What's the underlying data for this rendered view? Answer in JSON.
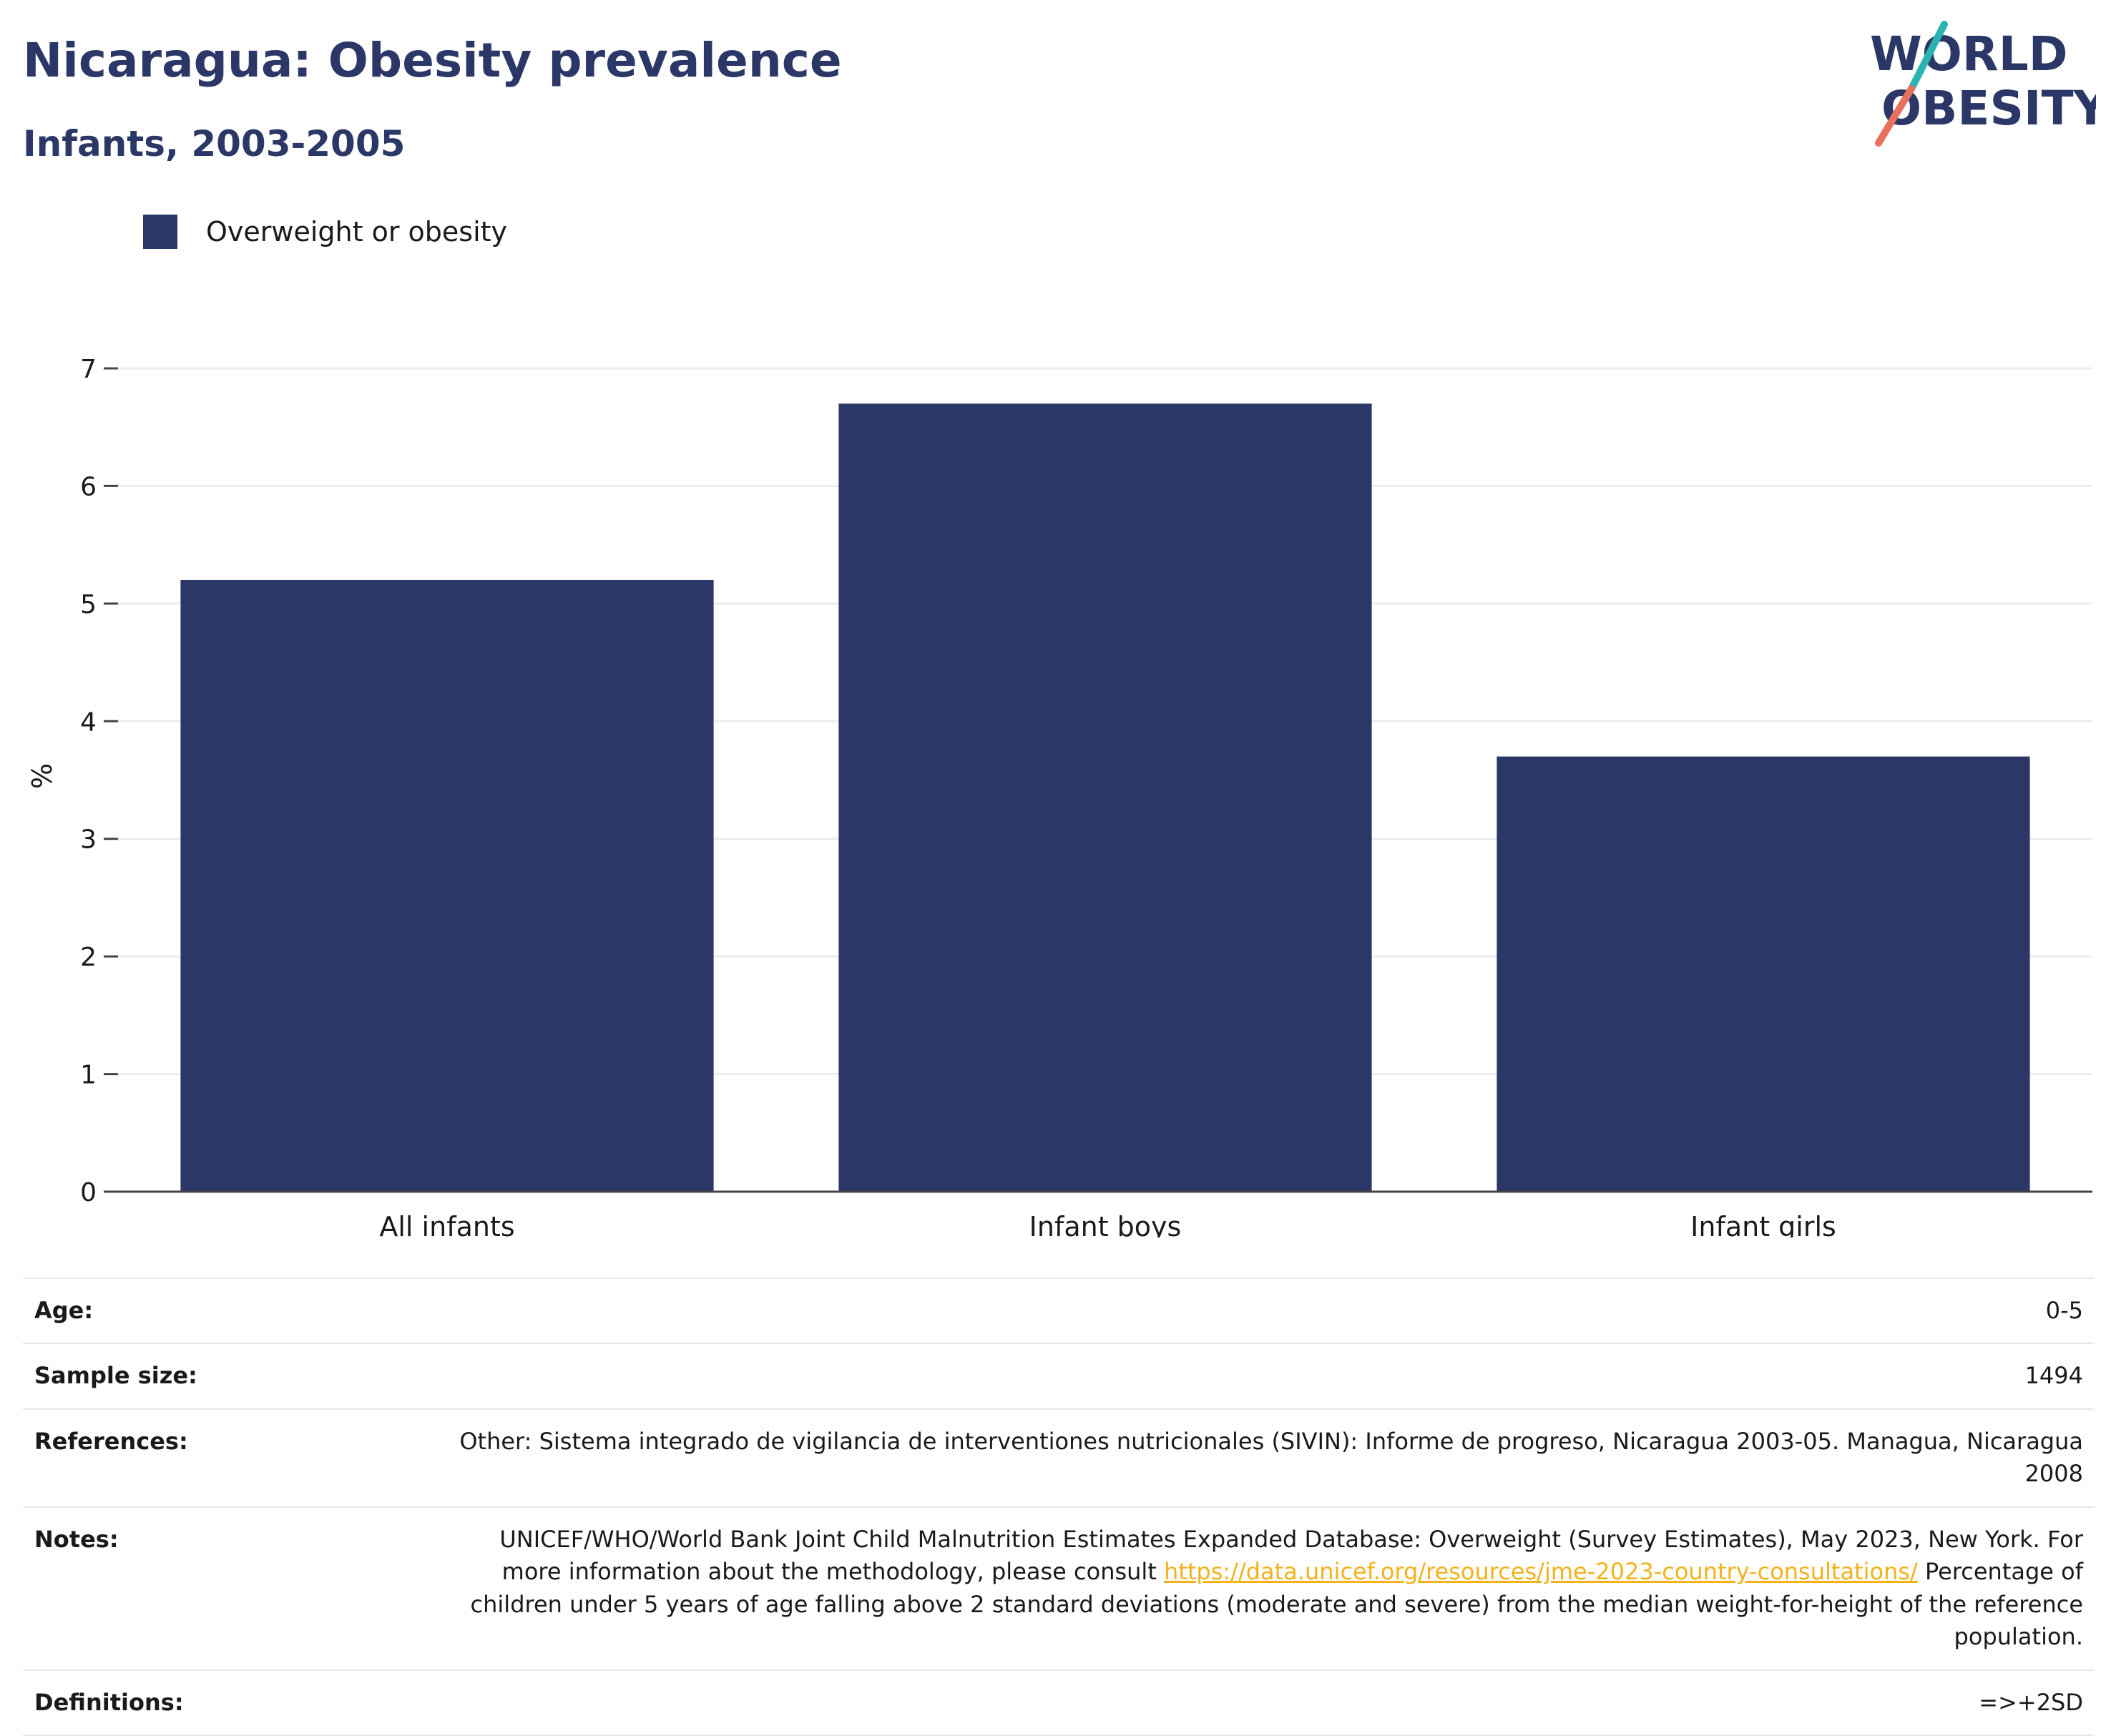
{
  "header": {
    "title": "Nicaragua: Obesity prevalence",
    "subtitle": "Infants, 2003-2005"
  },
  "logo": {
    "line1": "WORLD",
    "line2": "OBESITY",
    "colors": {
      "text": "#2b3766",
      "slash_top": "#2bb3b1",
      "slash_bottom": "#e8705f"
    }
  },
  "legend": {
    "items": [
      {
        "label": "Overweight or obesity",
        "color": "#2b3766"
      }
    ]
  },
  "chart_data": {
    "type": "bar",
    "categories": [
      "All infants",
      "Infant boys",
      "Infant girls"
    ],
    "series": [
      {
        "name": "Overweight or obesity",
        "values": [
          5.2,
          6.7,
          3.7
        ],
        "color": "#2b3766"
      }
    ],
    "ylabel": "%",
    "ylim": [
      0,
      7
    ],
    "yticks": [
      0,
      1,
      2,
      3,
      4,
      5,
      6,
      7
    ],
    "grid": true,
    "legend_position": "top-left"
  },
  "info": {
    "rows": [
      {
        "label": "Age:",
        "value": "0-5"
      },
      {
        "label": "Sample size:",
        "value": "1494"
      },
      {
        "label": "References:",
        "value": "Other: Sistema integrado de vigilancia de interventiones nutricionales (SIVIN): Informe de progreso, Nicaragua 2003-05. Managua, Nicaragua 2008"
      },
      {
        "label": "Notes:",
        "value_before": "UNICEF/WHO/World Bank Joint Child Malnutrition Estimates Expanded Database: Overweight (Survey Estimates), May 2023, New York. For more information about the methodology, please consult ",
        "link": "https://data.unicef.org/resources/jme-2023-country-consultations/",
        "value_after": " Percentage of children under 5 years of age falling above 2 standard deviations (moderate and severe) from the median weight-for-height of the reference population."
      },
      {
        "label": "Definitions:",
        "value": "=>+2SD"
      }
    ],
    "link_color": "#f2b21b"
  }
}
